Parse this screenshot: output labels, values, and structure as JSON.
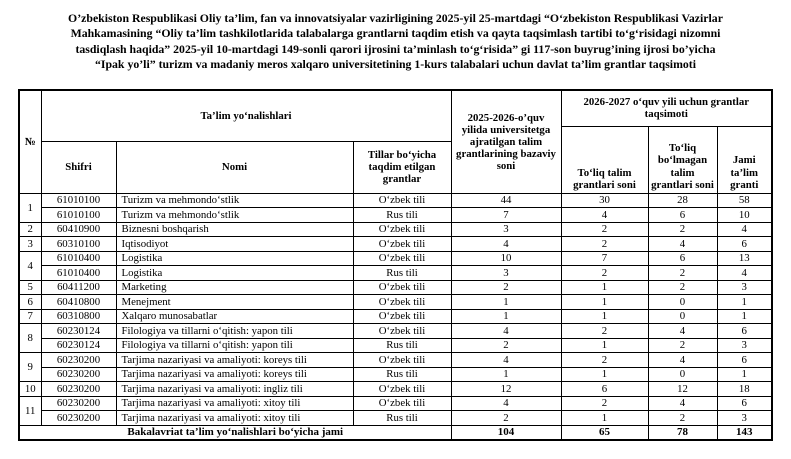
{
  "page": {
    "title_lines": [
      "O’zbekiston Respublikasi Oliy ta’lim, fan va innovatsiyalar vazirligining 2025-yil 25-martdagi “O‘zbekiston Respublikasi Vazirlar",
      "Mahkamasining “Oliy ta’lim tashkilotlarida talabalarga grantlarni taqdim etish va qayta taqsimlash tartibi to‘g‘risidagi nizomni",
      "tasdiqlash haqida” 2025-yil 10-martdagi 149-sonli qarori ijrosini ta’minlash to‘g‘risida” gi 117-son buyrug’ining ijrosi bo’yicha",
      "“Ipak yo’li” turizm va madaniy meros xalqaro universitetining 1-kurs talabalari uchun davlat ta’lim grantlar taqsimoti"
    ]
  },
  "table": {
    "headers": {
      "no": "№",
      "talim_yonalishlari": "Ta’lim yo‘nalishlari",
      "shifri": "Shifri",
      "nomi": "Nomi",
      "tillar": "Tillar bo‘yicha taqdim etilgan grantlar",
      "bazaviy": "2025-2026-o’quv yilida universitetga ajratilgan talim grantlarining bazaviy soni",
      "taqsimot_2026_2027": "2026-2027 o‘quv yili uchun grantlar taqsimoti",
      "toliq": "To‘liq talim grantlari soni",
      "toliq_bolmagan": "To‘liq bo‘lmagan talim grantlari soni",
      "jami": "Jami ta’lim granti"
    },
    "groups": [
      {
        "no": "1",
        "rows": [
          [
            "61010100",
            "Turizm va mehmondo‘stlik",
            "O‘zbek tili",
            "44",
            "30",
            "28",
            "58"
          ],
          [
            "61010100",
            "Turizm va mehmondo‘stlik",
            "Rus tili",
            "7",
            "4",
            "6",
            "10"
          ]
        ]
      },
      {
        "no": "2",
        "rows": [
          [
            "60410900",
            "Biznesni boshqarish",
            "O‘zbek tili",
            "3",
            "2",
            "2",
            "4"
          ]
        ]
      },
      {
        "no": "3",
        "rows": [
          [
            "60310100",
            "Iqtisodiyot",
            "O‘zbek tili",
            "4",
            "2",
            "4",
            "6"
          ]
        ]
      },
      {
        "no": "4",
        "rows": [
          [
            "61010400",
            "Logistika",
            "O‘zbek tili",
            "10",
            "7",
            "6",
            "13"
          ],
          [
            "61010400",
            "Logistika",
            "Rus tili",
            "3",
            "2",
            "2",
            "4"
          ]
        ]
      },
      {
        "no": "5",
        "rows": [
          [
            "60411200",
            "Marketing",
            "O‘zbek tili",
            "2",
            "1",
            "2",
            "3"
          ]
        ]
      },
      {
        "no": "6",
        "rows": [
          [
            "60410800",
            "Menejment",
            "O‘zbek tili",
            "1",
            "1",
            "0",
            "1"
          ]
        ]
      },
      {
        "no": "7",
        "rows": [
          [
            "60310800",
            "Xalqaro munosabatlar",
            "O‘zbek tili",
            "1",
            "1",
            "0",
            "1"
          ]
        ]
      },
      {
        "no": "8",
        "rows": [
          [
            "60230124",
            "Filologiya va tillarni o‘qitish: yapon tili",
            "O‘zbek tili",
            "4",
            "2",
            "4",
            "6"
          ],
          [
            "60230124",
            "Filologiya va tillarni o‘qitish: yapon tili",
            "Rus tili",
            "2",
            "1",
            "2",
            "3"
          ]
        ]
      },
      {
        "no": "9",
        "rows": [
          [
            "60230200",
            "Tarjima nazariyasi va amaliyoti: koreys tili",
            "O‘zbek tili",
            "4",
            "2",
            "4",
            "6"
          ],
          [
            "60230200",
            "Tarjima nazariyasi va amaliyoti: koreys tili",
            "Rus tili",
            "1",
            "1",
            "0",
            "1"
          ]
        ]
      },
      {
        "no": "10",
        "rows": [
          [
            "60230200",
            "Tarjima nazariyasi va amaliyoti: ingliz tili",
            "O‘zbek tili",
            "12",
            "6",
            "12",
            "18"
          ]
        ]
      },
      {
        "no": "11",
        "rows": [
          [
            "60230200",
            "Tarjima nazariyasi va amaliyoti: xitoy tili",
            "O‘zbek tili",
            "4",
            "2",
            "4",
            "6"
          ],
          [
            "60230200",
            "Tarjima nazariyasi va amaliyoti: xitoy tili",
            "Rus tili",
            "2",
            "1",
            "2",
            "3"
          ]
        ]
      }
    ],
    "footer": {
      "label": "Bakalavriat ta’lim yo‘nalishlari bo‘yicha jami",
      "values": [
        "104",
        "65",
        "78",
        "143"
      ]
    }
  }
}
